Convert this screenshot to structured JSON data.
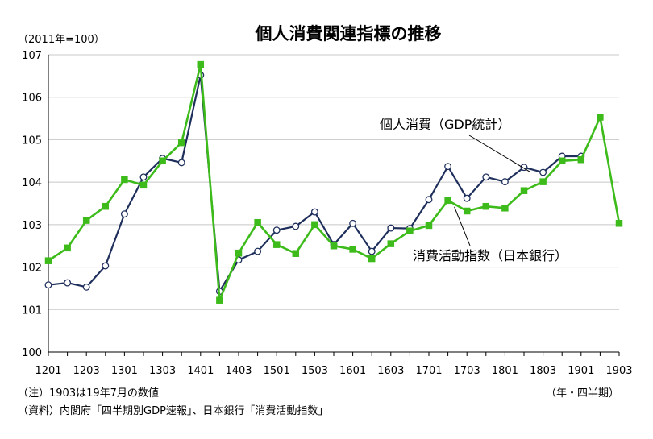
{
  "chart_data": {
    "type": "line",
    "title": "個人消費関連指標の推移",
    "unit_label": "（2011年=100）",
    "xlabel": "（年・四半期）",
    "ylabel": "",
    "ylim": [
      100,
      107
    ],
    "yticks": [
      "100",
      "101",
      "102",
      "103",
      "104",
      "105",
      "106",
      "107"
    ],
    "grid": "horizontal",
    "categories": [
      "1201",
      "1202",
      "1203",
      "1204",
      "1301",
      "1302",
      "1303",
      "1304",
      "1401",
      "1402",
      "1403",
      "1404",
      "1501",
      "1502",
      "1503",
      "1504",
      "1601",
      "1602",
      "1603",
      "1604",
      "1701",
      "1702",
      "1703",
      "1704",
      "1801",
      "1802",
      "1803",
      "1804",
      "1901",
      "1902",
      "1903"
    ],
    "x_tick_labels": [
      "1201",
      "1203",
      "1301",
      "1303",
      "1401",
      "1403",
      "1501",
      "1503",
      "1601",
      "1603",
      "1701",
      "1703",
      "1801",
      "1803",
      "1901",
      "1903"
    ],
    "series": [
      {
        "name": "個人消費（GDP統計）",
        "color": "#1f2f5c",
        "marker": "circle-hollow",
        "values": [
          101.58,
          101.63,
          101.53,
          102.03,
          103.25,
          104.12,
          104.56,
          104.46,
          106.52,
          101.43,
          102.17,
          102.37,
          102.87,
          102.96,
          103.3,
          102.53,
          103.03,
          102.37,
          102.92,
          102.91,
          103.59,
          104.37,
          103.62,
          104.12,
          104.01,
          104.35,
          104.23,
          104.61,
          104.61,
          null,
          null
        ]
      },
      {
        "name": "消費活動指数（日本銀行）",
        "color": "#3dbb1a",
        "marker": "square",
        "values": [
          102.15,
          102.45,
          103.1,
          103.43,
          104.06,
          103.93,
          104.5,
          104.93,
          106.77,
          101.22,
          102.33,
          103.05,
          102.53,
          102.32,
          103.0,
          102.5,
          102.42,
          102.2,
          102.55,
          102.85,
          102.98,
          103.57,
          103.32,
          103.43,
          103.39,
          103.8,
          104.01,
          104.5,
          104.53,
          105.53,
          103.03
        ]
      }
    ],
    "annotations": [
      {
        "text": "個人消費（GDP統計）",
        "target_series": 0
      },
      {
        "text": "消費活動指数（日本銀行）",
        "target_series": 1
      }
    ],
    "notes": [
      "（注）1903は19年7月の数値",
      "（資料）内閣府「四半期別GDP速報」、日本銀行「消費活動指数」"
    ]
  }
}
